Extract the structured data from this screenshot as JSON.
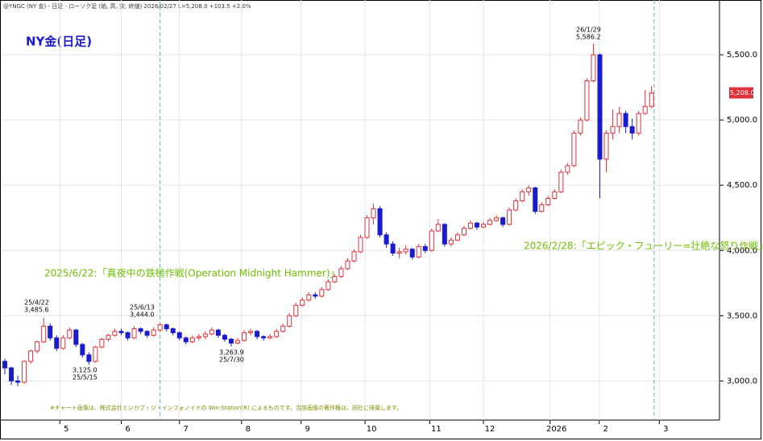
{
  "chart_data": {
    "type": "candlestick",
    "header": "@YNGC (NY 金) - 日足 - ローソク足 (始, 高, 安, 終値)  2026/02/27  L=5,208.0  +103.5  +2.0%",
    "title": "NY金(日足)",
    "footnote": "※チャート画像は、株式会社ミンカブ・ジ・インフォノイドの Win-Station(R) によるものです。当該画像の著作権は、同社に帰属します。",
    "up_color": "#e0303a",
    "down_color": "#1a1ad0",
    "ylim": [
      2700,
      5920
    ],
    "yticks": [
      {
        "value": 3000,
        "label": "3,000.0"
      },
      {
        "value": 3500,
        "label": "3,500.0"
      },
      {
        "value": 4000,
        "label": "4,000.0"
      },
      {
        "value": 4500,
        "label": "4,500.0"
      },
      {
        "value": 5000,
        "label": "5,000.0"
      },
      {
        "value": 5500,
        "label": "5,500.0"
      }
    ],
    "last_price": {
      "value": 5208,
      "label": "5,208.0"
    },
    "xlim": [
      -0.5,
      110.5
    ],
    "xticks": [
      {
        "value": 8.5,
        "label": "5"
      },
      {
        "value": 18,
        "label": "6"
      },
      {
        "value": 27,
        "label": "7"
      },
      {
        "value": 36.6,
        "label": "8"
      },
      {
        "value": 45.8,
        "label": "9"
      },
      {
        "value": 55.7,
        "label": "10"
      },
      {
        "value": 65.7,
        "label": "11"
      },
      {
        "value": 74,
        "label": "12"
      },
      {
        "value": 84.3,
        "label": "2026"
      },
      {
        "value": 91.9,
        "label": "2"
      },
      {
        "value": 101.2,
        "label": "3"
      }
    ],
    "grid": true,
    "ohlc": [
      [
        3150,
        3170,
        3050,
        3100
      ],
      [
        3100,
        3110,
        2970,
        3000
      ],
      [
        3000,
        3040,
        2960,
        2990
      ],
      [
        2990,
        3160,
        2980,
        3150
      ],
      [
        3150,
        3240,
        3130,
        3230
      ],
      [
        3230,
        3310,
        3210,
        3300
      ],
      [
        3300,
        3485.6,
        3290,
        3420
      ],
      [
        3420,
        3440,
        3310,
        3330
      ],
      [
        3330,
        3350,
        3230,
        3250
      ],
      [
        3250,
        3350,
        3240,
        3330
      ],
      [
        3330,
        3410,
        3320,
        3390
      ],
      [
        3390,
        3400,
        3260,
        3280
      ],
      [
        3280,
        3290,
        3180,
        3200
      ],
      [
        3200,
        3220,
        3125,
        3150
      ],
      [
        3150,
        3270,
        3140,
        3260
      ],
      [
        3260,
        3330,
        3250,
        3320
      ],
      [
        3320,
        3360,
        3300,
        3350
      ],
      [
        3350,
        3400,
        3340,
        3380
      ],
      [
        3380,
        3400,
        3350,
        3370
      ],
      [
        3370,
        3380,
        3310,
        3330
      ],
      [
        3330,
        3420,
        3320,
        3400
      ],
      [
        3400,
        3410,
        3360,
        3380
      ],
      [
        3380,
        3390,
        3330,
        3350
      ],
      [
        3350,
        3410,
        3340,
        3390
      ],
      [
        3390,
        3444,
        3380,
        3430
      ],
      [
        3430,
        3440,
        3380,
        3400
      ],
      [
        3400,
        3410,
        3350,
        3370
      ],
      [
        3370,
        3380,
        3310,
        3330
      ],
      [
        3330,
        3340,
        3280,
        3300
      ],
      [
        3300,
        3350,
        3290,
        3330
      ],
      [
        3330,
        3360,
        3310,
        3340
      ],
      [
        3340,
        3380,
        3320,
        3360
      ],
      [
        3360,
        3410,
        3350,
        3390
      ],
      [
        3390,
        3400,
        3330,
        3350
      ],
      [
        3350,
        3360,
        3300,
        3320
      ],
      [
        3320,
        3330,
        3263.9,
        3290
      ],
      [
        3290,
        3330,
        3280,
        3310
      ],
      [
        3310,
        3390,
        3300,
        3370
      ],
      [
        3370,
        3400,
        3350,
        3380
      ],
      [
        3380,
        3390,
        3320,
        3340
      ],
      [
        3340,
        3350,
        3310,
        3330
      ],
      [
        3330,
        3360,
        3320,
        3340
      ],
      [
        3340,
        3400,
        3330,
        3380
      ],
      [
        3380,
        3440,
        3370,
        3420
      ],
      [
        3420,
        3520,
        3410,
        3500
      ],
      [
        3500,
        3600,
        3490,
        3580
      ],
      [
        3580,
        3640,
        3570,
        3620
      ],
      [
        3620,
        3680,
        3610,
        3660
      ],
      [
        3660,
        3680,
        3630,
        3650
      ],
      [
        3650,
        3720,
        3640,
        3700
      ],
      [
        3700,
        3780,
        3690,
        3760
      ],
      [
        3760,
        3820,
        3750,
        3800
      ],
      [
        3800,
        3880,
        3790,
        3860
      ],
      [
        3860,
        3940,
        3850,
        3920
      ],
      [
        3920,
        4010,
        3910,
        3990
      ],
      [
        3990,
        4120,
        3980,
        4100
      ],
      [
        4100,
        4270,
        4090,
        4250
      ],
      [
        4250,
        4360,
        4200,
        4320
      ],
      [
        4320,
        4340,
        4100,
        4120
      ],
      [
        4120,
        4140,
        4020,
        4050
      ],
      [
        4050,
        4070,
        3960,
        3980
      ],
      [
        3980,
        4020,
        3940,
        3990
      ],
      [
        3990,
        4040,
        3970,
        4010
      ],
      [
        4010,
        4020,
        3930,
        3950
      ],
      [
        3950,
        4050,
        3940,
        4030
      ],
      [
        4030,
        4050,
        3980,
        4000
      ],
      [
        4000,
        4170,
        3990,
        4150
      ],
      [
        4150,
        4240,
        4140,
        4200
      ],
      [
        4200,
        4210,
        4030,
        4050
      ],
      [
        4050,
        4100,
        4030,
        4080
      ],
      [
        4080,
        4140,
        4070,
        4120
      ],
      [
        4120,
        4190,
        4110,
        4170
      ],
      [
        4170,
        4230,
        4160,
        4210
      ],
      [
        4210,
        4220,
        4160,
        4180
      ],
      [
        4180,
        4220,
        4170,
        4200
      ],
      [
        4200,
        4250,
        4190,
        4230
      ],
      [
        4230,
        4270,
        4220,
        4250
      ],
      [
        4250,
        4260,
        4180,
        4200
      ],
      [
        4200,
        4330,
        4190,
        4310
      ],
      [
        4310,
        4400,
        4300,
        4380
      ],
      [
        4380,
        4470,
        4370,
        4450
      ],
      [
        4450,
        4500,
        4420,
        4480
      ],
      [
        4480,
        4490,
        4280,
        4300
      ],
      [
        4300,
        4370,
        4290,
        4350
      ],
      [
        4350,
        4420,
        4340,
        4400
      ],
      [
        4400,
        4470,
        4390,
        4450
      ],
      [
        4450,
        4620,
        4440,
        4600
      ],
      [
        4600,
        4670,
        4580,
        4650
      ],
      [
        4650,
        4920,
        4640,
        4900
      ],
      [
        4900,
        5020,
        4880,
        5000
      ],
      [
        5000,
        5320,
        4990,
        5300
      ],
      [
        5300,
        5586.2,
        5290,
        5500
      ],
      [
        5500,
        5510,
        4400,
        4700
      ],
      [
        4700,
        4920,
        4600,
        4900
      ],
      [
        4900,
        5080,
        4850,
        4950
      ],
      [
        4950,
        5100,
        4900,
        5050
      ],
      [
        5050,
        5070,
        4900,
        4950
      ],
      [
        4950,
        5010,
        4850,
        4900
      ],
      [
        4900,
        5070,
        4880,
        5050
      ],
      [
        5050,
        5230,
        5040,
        5104.5
      ],
      [
        5104.5,
        5260,
        5090,
        5208
      ]
    ],
    "annotations": [
      {
        "date": "25/4/22",
        "price": "3,485.6"
      },
      {
        "date": "25/5/15",
        "price": "3,125.0"
      },
      {
        "date": "25/6/13",
        "price": "3,444.0"
      },
      {
        "date": "25/7/30",
        "price": "3,263.9"
      },
      {
        "date": "26/1/29",
        "price": "5,586.2"
      }
    ],
    "events": [
      {
        "x": 24,
        "label": "2025/6/22:「真夜中の鉄槌作戦(Operation Midnight Hammer)」"
      },
      {
        "x": 100.4,
        "label": "2026/2/28:「エピック・フューリー=壮絶な怒り作戦」"
      }
    ]
  }
}
